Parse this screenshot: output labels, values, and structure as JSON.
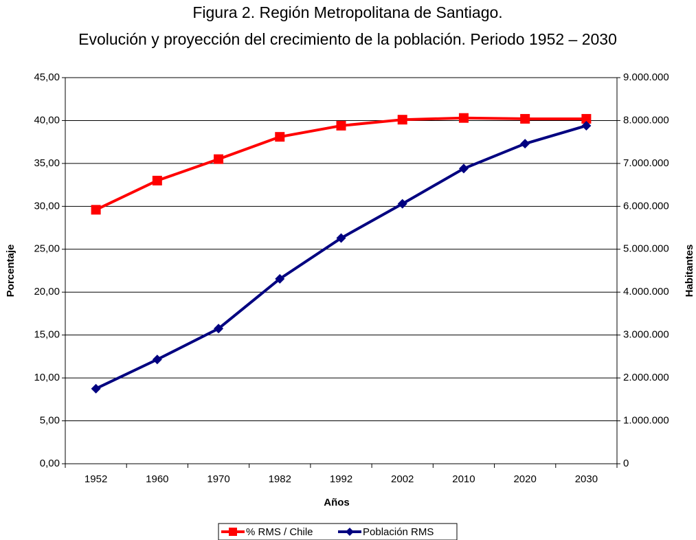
{
  "chart_data": {
    "type": "line",
    "title": "Figura 2. Región Metropolitana de Santiago.",
    "subtitle": "Evolución y proyección del crecimiento de la población. Periodo 1952 – 2030",
    "x_label": "Años",
    "y_label": "Porcentaje",
    "y2_label": "Habitantes",
    "categories": [
      "1952",
      "1960",
      "1970",
      "1982",
      "1992",
      "2002",
      "2010",
      "2020",
      "2030"
    ],
    "series": [
      {
        "name": "% RMS / Chile",
        "color": "#ff0000",
        "marker": "square",
        "values": [
          29.6,
          33.0,
          35.5,
          38.1,
          39.4,
          40.1,
          40.3,
          40.2,
          40.2
        ]
      },
      {
        "name": "Población RMS",
        "color": "#000080",
        "marker": "diamond",
        "axis": "y2",
        "values": [
          1750000,
          2430000,
          3150000,
          4310000,
          5260000,
          6060000,
          6880000,
          7460000,
          7880000
        ]
      }
    ],
    "ylim": [
      0,
      45
    ],
    "yticks": [
      {
        "value": 0,
        "label": "0,00"
      },
      {
        "value": 5,
        "label": "5,00"
      },
      {
        "value": 10,
        "label": "10,00"
      },
      {
        "value": 15,
        "label": "15,00"
      },
      {
        "value": 20,
        "label": "20,00"
      },
      {
        "value": 25,
        "label": "25,00"
      },
      {
        "value": 30,
        "label": "30,00"
      },
      {
        "value": 35,
        "label": "35,00"
      },
      {
        "value": 40,
        "label": "40,00"
      },
      {
        "value": 45,
        "label": "45,00"
      }
    ],
    "y2lim": [
      0,
      9000000
    ],
    "y2ticks": [
      0,
      {
        "value": 1000000,
        "label": "1.000.000"
      },
      {
        "value": 2000000,
        "label": "2.000.000"
      },
      {
        "value": 3000000,
        "label": "3.000.000"
      },
      {
        "value": 4000000,
        "label": "4.000.000"
      },
      {
        "value": 5000000,
        "label": "5.000.000"
      },
      {
        "value": 6000000,
        "label": "6.000.000"
      },
      {
        "value": 7000000,
        "label": "7.000.000"
      },
      {
        "value": 8000000,
        "label": "8.000.000"
      },
      {
        "value": 9000000,
        "label": "9.000.000"
      }
    ],
    "grid": true,
    "legend": "bottom"
  }
}
